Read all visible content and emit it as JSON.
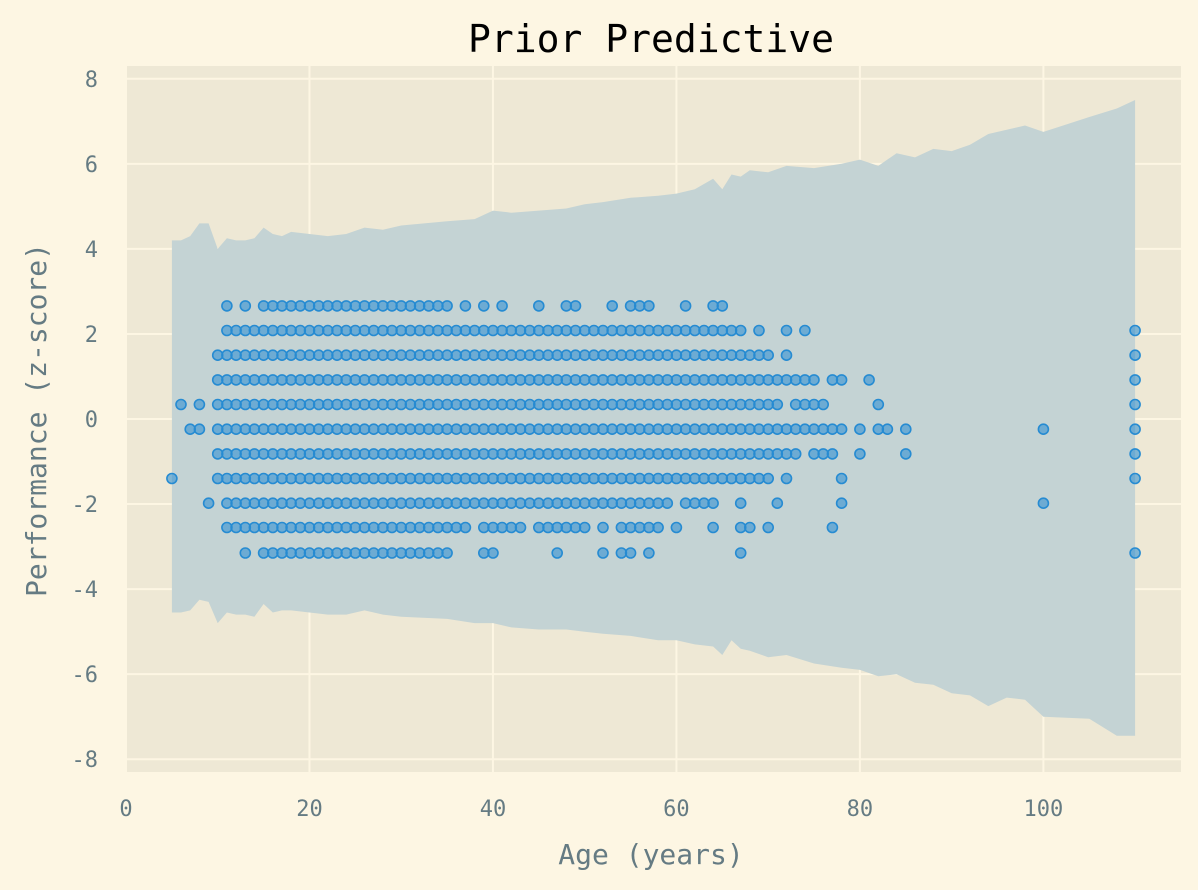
{
  "chart_data": {
    "type": "scatter",
    "title": "Prior Predictive",
    "xlabel": "Age (years)",
    "ylabel": "Performance (z-score)",
    "xlim": [
      0,
      115
    ],
    "ylim": [
      -8.3,
      8.3
    ],
    "xticks": [
      0,
      20,
      40,
      60,
      80,
      100
    ],
    "yticks": [
      -8,
      -6,
      -4,
      -2,
      0,
      2,
      4,
      6,
      8
    ],
    "grid": true,
    "colors": {
      "background": "#fdf6e3",
      "plot_area": "#eee8d5",
      "band": "#c4d3d4",
      "points": "#268bd2",
      "grid": "#fdf6e3",
      "text": "#657b83"
    },
    "band": {
      "x": [
        5,
        6,
        7,
        8,
        9,
        10,
        11,
        12,
        13,
        14,
        15,
        16,
        17,
        18,
        20,
        22,
        24,
        26,
        28,
        30,
        35,
        38,
        40,
        42,
        45,
        48,
        50,
        52,
        55,
        58,
        60,
        62,
        64,
        65,
        66,
        67,
        68,
        70,
        72,
        75,
        78,
        80,
        82,
        84,
        86,
        88,
        90,
        92,
        94,
        96,
        98,
        100,
        105,
        108,
        110
      ],
      "upper": [
        4.2,
        4.2,
        4.3,
        4.6,
        4.6,
        4.0,
        4.25,
        4.2,
        4.2,
        4.25,
        4.5,
        4.35,
        4.3,
        4.4,
        4.35,
        4.3,
        4.35,
        4.5,
        4.45,
        4.55,
        4.65,
        4.7,
        4.9,
        4.85,
        4.9,
        4.95,
        5.05,
        5.1,
        5.2,
        5.25,
        5.3,
        5.4,
        5.65,
        5.4,
        5.75,
        5.7,
        5.85,
        5.8,
        5.95,
        5.9,
        6.0,
        6.1,
        5.95,
        6.25,
        6.15,
        6.35,
        6.3,
        6.45,
        6.7,
        6.8,
        6.9,
        6.75,
        7.1,
        7.3,
        7.5
      ],
      "lower": [
        -4.55,
        -4.55,
        -4.5,
        -4.25,
        -4.3,
        -4.8,
        -4.55,
        -4.6,
        -4.6,
        -4.65,
        -4.35,
        -4.55,
        -4.5,
        -4.5,
        -4.55,
        -4.6,
        -4.6,
        -4.5,
        -4.6,
        -4.65,
        -4.7,
        -4.8,
        -4.8,
        -4.9,
        -4.95,
        -4.95,
        -5.0,
        -5.05,
        -5.1,
        -5.2,
        -5.2,
        -5.3,
        -5.35,
        -5.55,
        -5.2,
        -5.4,
        -5.45,
        -5.6,
        -5.55,
        -5.75,
        -5.85,
        -5.9,
        -6.05,
        -6.0,
        -6.2,
        -6.25,
        -6.45,
        -6.5,
        -6.75,
        -6.55,
        -6.6,
        -7.0,
        -7.05,
        -7.45,
        -7.45
      ]
    },
    "x": [
      5,
      6,
      7,
      8,
      9,
      10,
      11,
      12,
      13,
      14,
      15,
      16,
      17,
      18,
      19,
      20,
      21,
      22,
      23,
      24,
      25,
      26,
      27,
      28,
      29,
      30,
      31,
      32,
      33,
      34,
      35,
      36,
      37,
      38,
      39,
      40,
      41,
      42,
      43,
      44,
      45,
      46,
      47,
      48,
      49,
      50,
      51,
      52,
      53,
      54,
      55,
      56,
      57,
      58,
      59,
      60,
      61,
      62,
      63,
      64,
      65,
      66,
      67,
      68,
      69,
      70,
      71,
      72,
      73,
      74,
      75,
      76,
      77,
      78,
      80,
      81,
      82,
      83,
      85,
      100,
      110
    ],
    "levels": [
      -3.15,
      -2.55,
      -1.98,
      -1.4,
      -0.82,
      -0.24,
      0.34,
      0.92,
      1.5,
      2.08,
      2.66
    ],
    "presence": [
      "00010000000",
      "00000010000",
      "00000100000",
      "00000110000",
      "00100000000",
      "00011111100",
      "01111111111",
      "01111111110",
      "11111111111",
      "01111111110",
      "11111111111",
      "11111111111",
      "11111111111",
      "11111111111",
      "11111111111",
      "11111111111",
      "11111111111",
      "11111111111",
      "11111111111",
      "11111111111",
      "11111111111",
      "11111111111",
      "11111111111",
      "11111111111",
      "11111111111",
      "11111111111",
      "11111111111",
      "11111111111",
      "11111111111",
      "11111111111",
      "11111111111",
      "01111111110",
      "01111111111",
      "00111111110",
      "11111111111",
      "11111111110",
      "01111111111",
      "01111111110",
      "01111111110",
      "00111111110",
      "01111111111",
      "01111111110",
      "11111111110",
      "01111111111",
      "01111111111",
      "01111111110",
      "00111111110",
      "11111111110",
      "00111111111",
      "11111111110",
      "11111111111",
      "01111111111",
      "11111111111",
      "01111111110",
      "00111111110",
      "01011111110",
      "00111111111",
      "00111111110",
      "00111111110",
      "01111111111",
      "00011111111",
      "00011111110",
      "11111111110",
      "01011111100",
      "00011111110",
      "01011111100",
      "00101111000",
      "00011101110",
      "00001111000",
      "00000111010",
      "00001111000",
      "00001110000",
      "01001101000",
      "00110101000",
      "00001100000",
      "00000001000",
      "00000110000",
      "00000100000",
      "00001100000",
      "00100100000",
      "10011111110"
    ]
  }
}
